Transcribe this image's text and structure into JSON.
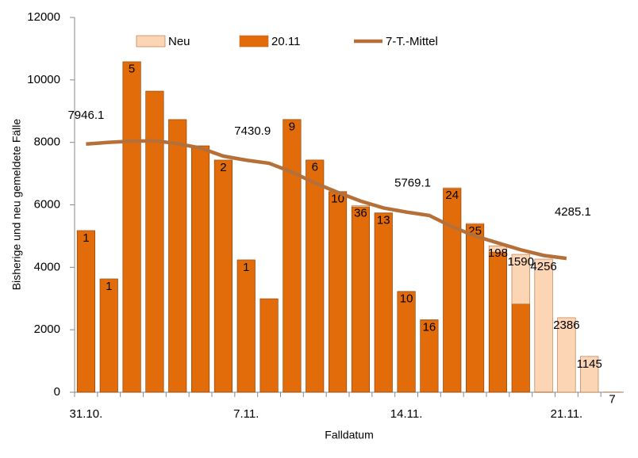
{
  "chart_data": {
    "type": "bar",
    "y_label": "Bisherige und neu gemeldete Fälle",
    "x_label": "Falldatum",
    "categories": [
      "31.10.",
      null,
      null,
      null,
      null,
      null,
      null,
      "7.11.",
      null,
      null,
      null,
      null,
      null,
      null,
      "14.11.",
      null,
      null,
      null,
      null,
      null,
      null,
      "21.11.",
      null,
      null
    ],
    "series": [
      {
        "name": "20.11",
        "color": "#e36c0a",
        "values": [
          5175,
          3628,
          10580,
          9640,
          8730,
          7890,
          7433,
          4237,
          2993,
          8727,
          7433,
          6418,
          5936,
          5733,
          3222,
          2309,
          6520,
          5378,
          4490,
          2824,
          6,
          0,
          0,
          0
        ]
      },
      {
        "name": "Neu",
        "color": "#fcd5b5",
        "values": [
          1,
          1,
          5,
          null,
          null,
          null,
          2,
          1,
          null,
          9,
          6,
          10,
          36,
          13,
          10,
          16,
          24,
          25,
          198,
          1590,
          4256,
          2386,
          1145,
          7
        ]
      },
      {
        "name": "7-T.-Mittel",
        "color": "#b5703a",
        "type": "line",
        "values": [
          7946.1,
          8000,
          8040,
          8050,
          7960,
          7820,
          7560,
          7430.9,
          7330,
          7050,
          6700,
          6400,
          6120,
          5900,
          5769.1,
          5660,
          5300,
          5000,
          4780,
          4560,
          4380,
          4285.1,
          null,
          null
        ],
        "value_labels": [
          "7946.1",
          null,
          null,
          null,
          null,
          null,
          null,
          "7430.9",
          null,
          null,
          null,
          null,
          null,
          null,
          "5769.1",
          null,
          null,
          null,
          null,
          null,
          null,
          "4285.1",
          null,
          null
        ]
      }
    ],
    "legend_order": [
      "Neu",
      "20.11",
      "7-T.-Mittel"
    ],
    "ylim": [
      0,
      12000
    ],
    "yticks": [
      0,
      2000,
      4000,
      6000,
      8000,
      10000,
      12000
    ]
  }
}
